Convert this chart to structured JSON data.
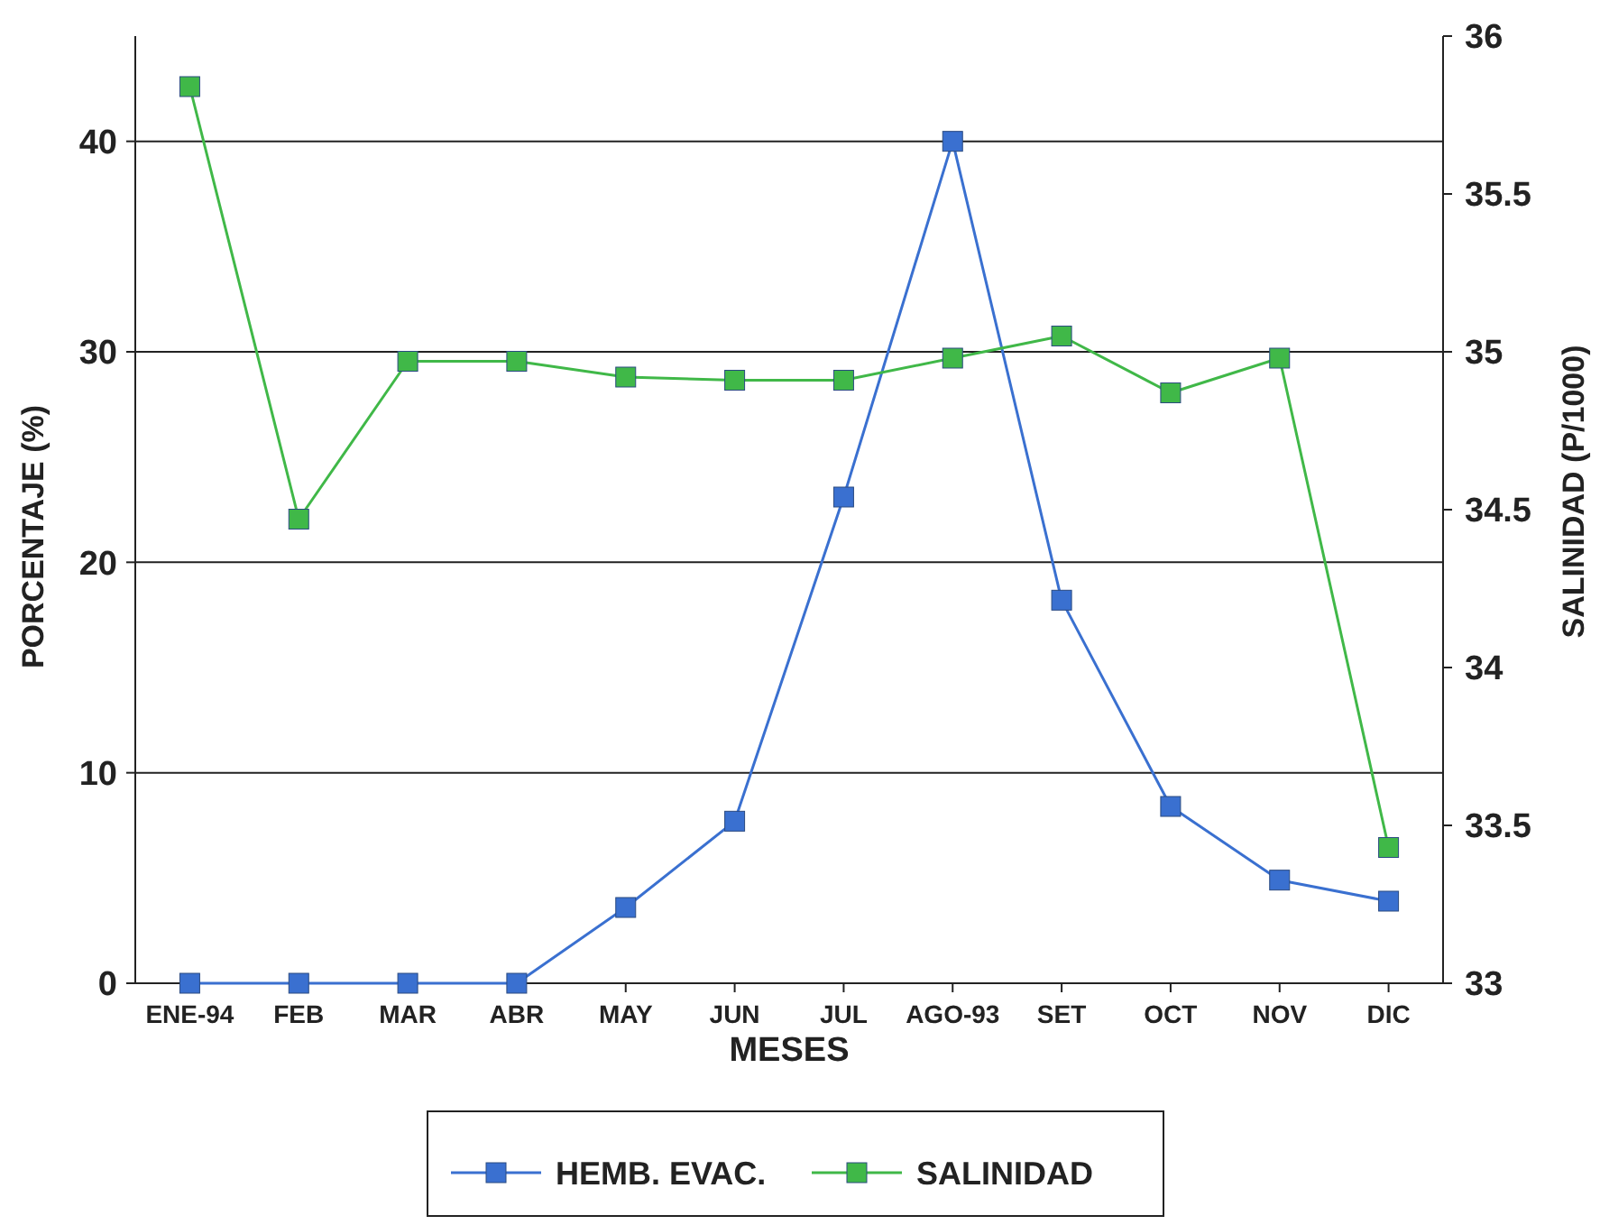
{
  "chart_data": {
    "type": "line",
    "xlabel": "MESES",
    "ylabel": "PORCENTAJE (%)",
    "y2label": "SALINIDAD (P/1000)",
    "categories": [
      "ENE-94",
      "FEB",
      "MAR",
      "ABR",
      "MAY",
      "JUN",
      "JUL",
      "AGO-93",
      "SET",
      "OCT",
      "NOV",
      "DIC"
    ],
    "series": [
      {
        "name": "HEMB. EVAC.",
        "color": "#3a70d0",
        "values": [
          0,
          0,
          0,
          0,
          3.6,
          7.7,
          23.1,
          40,
          18.2,
          8.4,
          4.9,
          3.9
        ]
      },
      {
        "name": "SALINIDAD",
        "color": "#40b848",
        "axis": "y2",
        "values": [
          35.84,
          34.47,
          34.97,
          34.97,
          34.92,
          34.91,
          34.91,
          34.98,
          35.05,
          34.87,
          34.98,
          33.43
        ]
      }
    ],
    "ylim": [
      0,
      45
    ],
    "yticks": [
      0,
      10,
      20,
      30,
      40
    ],
    "y2lim": [
      33,
      36
    ],
    "y2ticks": [
      33,
      33.5,
      34,
      34.5,
      35,
      35.5,
      36
    ],
    "grid": "y",
    "legend": "bottom",
    "marker": "square",
    "line_style": "solid"
  }
}
